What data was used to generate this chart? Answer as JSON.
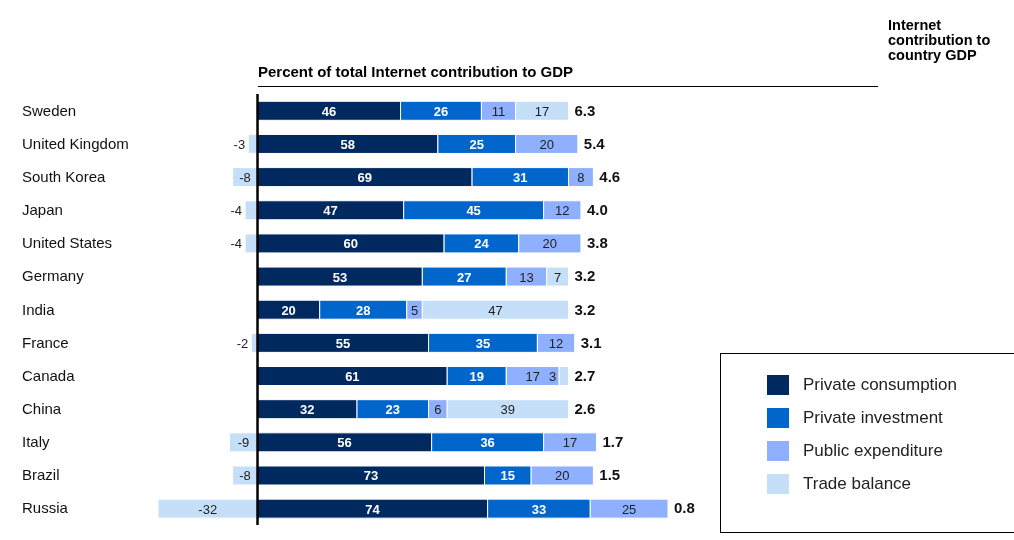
{
  "chart_data": {
    "type": "bar",
    "orientation": "horizontal",
    "stacked": true,
    "title": "Percent of total Internet contribution to GDP",
    "categories": [
      "Sweden",
      "United Kingdom",
      "South Korea",
      "Japan",
      "United States",
      "Germany",
      "India",
      "France",
      "Canada",
      "China",
      "Italy",
      "Brazil",
      "Russia"
    ],
    "series": [
      {
        "name": "Private consumption",
        "color": "#002960",
        "values": [
          46,
          58,
          69,
          47,
          60,
          53,
          20,
          55,
          61,
          32,
          56,
          73,
          74
        ]
      },
      {
        "name": "Private investment",
        "color": "#0066cc",
        "values": [
          26,
          25,
          31,
          45,
          24,
          27,
          28,
          35,
          19,
          23,
          36,
          15,
          33
        ]
      },
      {
        "name": "Public expenditure",
        "color": "#8fb0ff",
        "values": [
          11,
          20,
          8,
          12,
          20,
          13,
          5,
          12,
          17,
          6,
          17,
          20,
          25
        ]
      },
      {
        "name": "Trade balance",
        "color": "#c6dff8",
        "values": [
          17,
          -3,
          -8,
          -4,
          -4,
          7,
          47,
          -2,
          3,
          39,
          -9,
          -8,
          -32
        ]
      }
    ],
    "xlim": [
      -32,
      132
    ],
    "tick_labels": "y",
    "data_labels": true,
    "legend": "bottom right",
    "grid": false,
    "annotations": [
      "Internet contribution to country GDP",
      {
        "text": "6.3",
        "x": 100,
        "y": "Sweden"
      },
      {
        "text": "5.4",
        "x": 103,
        "y": "United Kingdom"
      },
      {
        "text": "4.6",
        "x": 108,
        "y": "South Korea"
      },
      {
        "text": "4.0",
        "x": 104,
        "y": "Japan"
      },
      {
        "text": "3.8",
        "x": 104,
        "y": "United States"
      },
      {
        "text": "3.2",
        "x": 100,
        "y": "Germany"
      },
      {
        "text": "3.2",
        "x": 100,
        "y": "India"
      },
      {
        "text": "3.1",
        "x": 102,
        "y": "France"
      },
      {
        "text": "2.7",
        "x": 100,
        "y": "Canada"
      },
      {
        "text": "2.6",
        "x": 100,
        "y": "China"
      },
      {
        "text": "1.7",
        "x": 109,
        "y": "Italy"
      },
      {
        "text": "1.5",
        "x": 108,
        "y": "Brazil"
      },
      {
        "text": "0.8",
        "x": 132,
        "y": "Russia"
      }
    ]
  }
}
